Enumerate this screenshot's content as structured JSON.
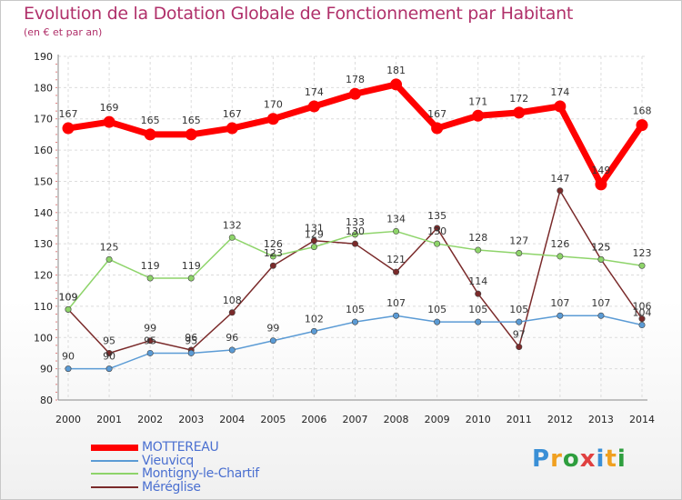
{
  "title": "Evolution de la Dotation Globale de Fonctionnement par Habitant",
  "subtitle": "(en € et par an)",
  "logo": {
    "text": "Proxiti",
    "colors": [
      "#3a8fd6",
      "#f0a020",
      "#2e9e3e",
      "#e04040",
      "#3a8fd6",
      "#f0a020",
      "#2e9e3e"
    ]
  },
  "chart_data": {
    "type": "line",
    "title": "Evolution de la Dotation Globale de Fonctionnement par Habitant",
    "subtitle": "(en € et par an)",
    "xlabel": "",
    "ylabel": "",
    "ylim": [
      80,
      190
    ],
    "yticks": [
      80,
      90,
      100,
      110,
      120,
      130,
      140,
      150,
      160,
      170,
      180,
      190
    ],
    "x": [
      "2000",
      "2001",
      "2002",
      "2003",
      "2004",
      "2005",
      "2006",
      "2007",
      "2008",
      "2009",
      "2010",
      "2011",
      "2012",
      "2013",
      "2014"
    ],
    "series": [
      {
        "name": "MOTTEREAU",
        "color": "#ff0000",
        "text_color": "#4a6fd0",
        "emphasis": true,
        "values": [
          167,
          169,
          165,
          165,
          167,
          170,
          174,
          178,
          181,
          167,
          171,
          172,
          174,
          149,
          168
        ]
      },
      {
        "name": "Vieuvicq",
        "color": "#5b9bd5",
        "text_color": "#4a6fd0",
        "emphasis": false,
        "values": [
          90,
          90,
          95,
          95,
          96,
          99,
          102,
          105,
          107,
          105,
          105,
          105,
          107,
          107,
          104
        ]
      },
      {
        "name": "Montigny-le-Chartif",
        "color": "#8ed46a",
        "text_color": "#4a6fd0",
        "emphasis": false,
        "values": [
          109,
          125,
          119,
          119,
          132,
          126,
          129,
          133,
          134,
          130,
          128,
          127,
          126,
          125,
          123
        ]
      },
      {
        "name": "Méréglise",
        "color": "#7a2a2a",
        "text_color": "#4a6fd0",
        "emphasis": false,
        "values": [
          109,
          95,
          99,
          96,
          108,
          123,
          131,
          130,
          121,
          135,
          114,
          97,
          147,
          125,
          106
        ]
      }
    ],
    "grid": true,
    "legend": "bottom-left"
  }
}
